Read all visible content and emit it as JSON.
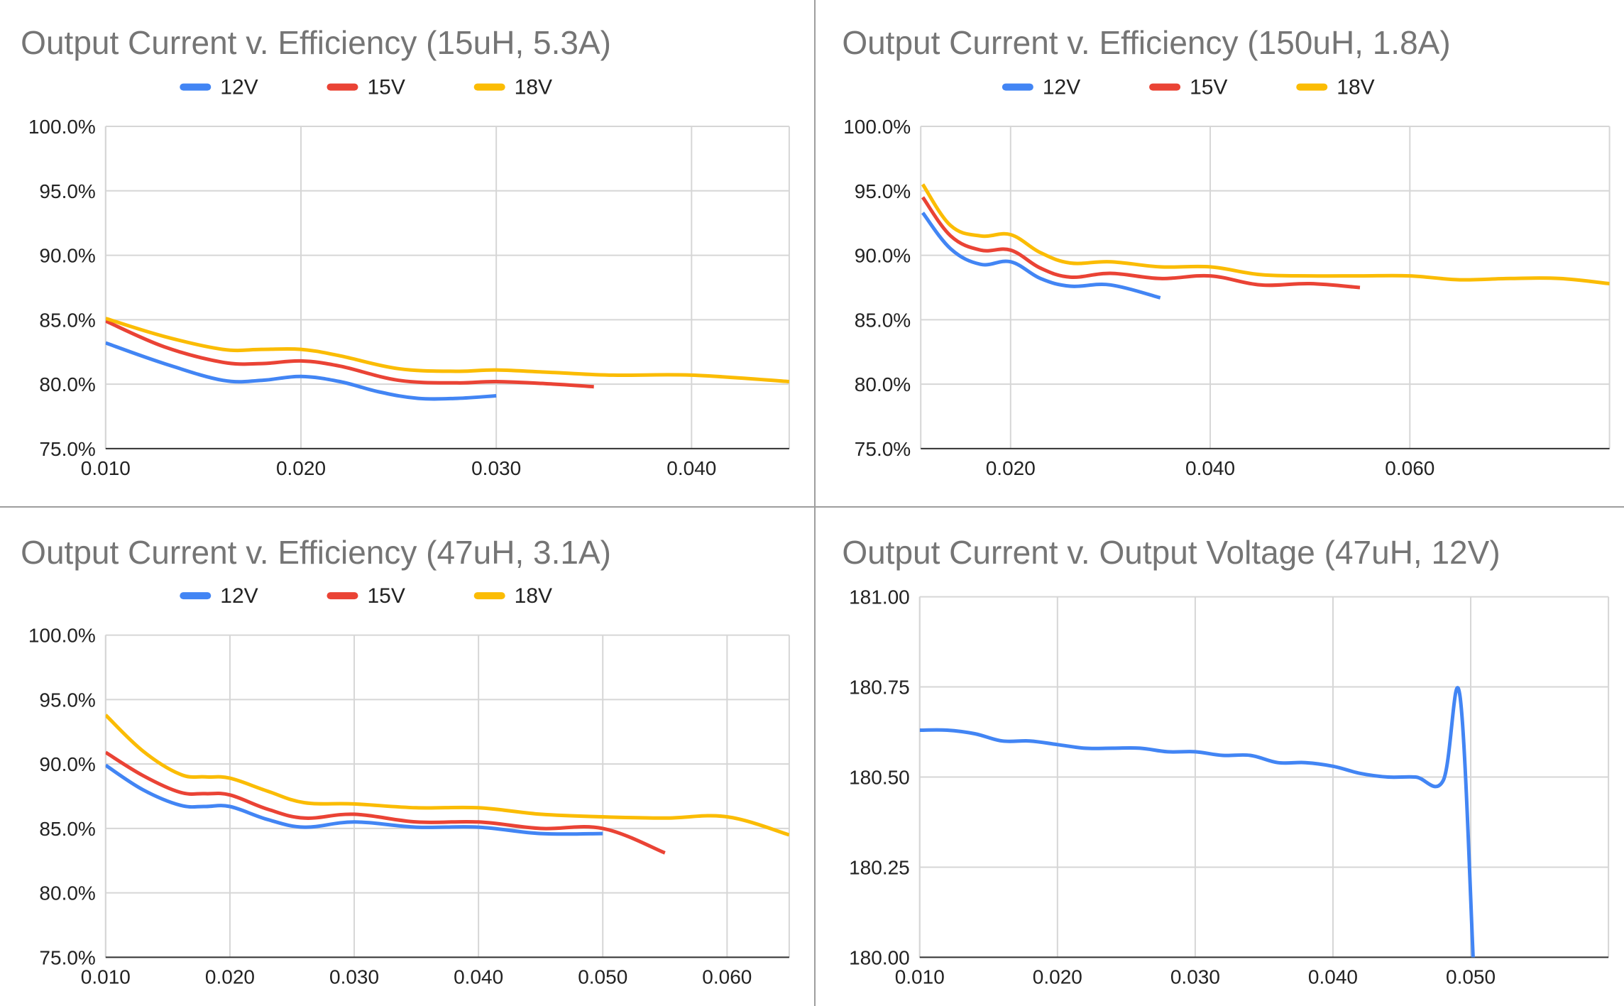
{
  "chart_data": [
    {
      "type": "line",
      "title": "Output Current v. Efficiency (15uH, 5.3A)",
      "xlabel": "",
      "ylabel": "",
      "xlim": [
        0.01,
        0.045
      ],
      "ylim": [
        0.75,
        1.0
      ],
      "xticks": [
        0.01,
        0.02,
        0.03,
        0.04
      ],
      "xtick_labels": [
        "0.010",
        "0.020",
        "0.030",
        "0.040"
      ],
      "yticks": [
        0.75,
        0.8,
        0.85,
        0.9,
        0.95,
        1.0
      ],
      "ytick_labels": [
        "75.0%",
        "80.0%",
        "85.0%",
        "90.0%",
        "95.0%",
        "100.0%"
      ],
      "grid": true,
      "legend_position": "top",
      "series": [
        {
          "name": "12V",
          "color": "#4285F4",
          "x": [
            0.01,
            0.013,
            0.016,
            0.018,
            0.02,
            0.022,
            0.024,
            0.026,
            0.028,
            0.03
          ],
          "y": [
            0.832,
            0.816,
            0.803,
            0.803,
            0.806,
            0.802,
            0.794,
            0.789,
            0.789,
            0.791
          ]
        },
        {
          "name": "15V",
          "color": "#EA4335",
          "x": [
            0.01,
            0.013,
            0.016,
            0.018,
            0.02,
            0.022,
            0.025,
            0.028,
            0.03,
            0.033,
            0.035
          ],
          "y": [
            0.849,
            0.829,
            0.817,
            0.816,
            0.818,
            0.814,
            0.803,
            0.801,
            0.802,
            0.8,
            0.798
          ]
        },
        {
          "name": "18V",
          "color": "#FBBC04",
          "x": [
            0.01,
            0.013,
            0.016,
            0.018,
            0.02,
            0.022,
            0.025,
            0.028,
            0.03,
            0.033,
            0.036,
            0.04,
            0.045
          ],
          "y": [
            0.851,
            0.837,
            0.827,
            0.827,
            0.827,
            0.822,
            0.812,
            0.81,
            0.811,
            0.809,
            0.807,
            0.807,
            0.802
          ]
        }
      ]
    },
    {
      "type": "line",
      "title": "Output Current v. Efficiency (150uH, 1.8A)",
      "xlabel": "",
      "ylabel": "",
      "xlim": [
        0.011,
        0.08
      ],
      "ylim": [
        0.75,
        1.0
      ],
      "xticks": [
        0.02,
        0.04,
        0.06
      ],
      "xtick_labels": [
        "0.020",
        "0.040",
        "0.060"
      ],
      "yticks": [
        0.75,
        0.8,
        0.85,
        0.9,
        0.95,
        1.0
      ],
      "ytick_labels": [
        "75.0%",
        "80.0%",
        "85.0%",
        "90.0%",
        "95.0%",
        "100.0%"
      ],
      "grid": true,
      "legend_position": "top",
      "series": [
        {
          "name": "12V",
          "color": "#4285F4",
          "x": [
            0.0112,
            0.014,
            0.017,
            0.02,
            0.023,
            0.026,
            0.03,
            0.035
          ],
          "y": [
            0.933,
            0.905,
            0.893,
            0.895,
            0.882,
            0.876,
            0.877,
            0.867
          ]
        },
        {
          "name": "15V",
          "color": "#EA4335",
          "x": [
            0.0112,
            0.014,
            0.017,
            0.02,
            0.023,
            0.026,
            0.03,
            0.035,
            0.04,
            0.045,
            0.05,
            0.055
          ],
          "y": [
            0.945,
            0.915,
            0.904,
            0.904,
            0.89,
            0.883,
            0.886,
            0.882,
            0.884,
            0.877,
            0.878,
            0.875
          ]
        },
        {
          "name": "18V",
          "color": "#FBBC04",
          "x": [
            0.0112,
            0.014,
            0.017,
            0.02,
            0.023,
            0.026,
            0.03,
            0.035,
            0.04,
            0.045,
            0.05,
            0.055,
            0.06,
            0.065,
            0.07,
            0.075,
            0.08
          ],
          "y": [
            0.955,
            0.923,
            0.915,
            0.916,
            0.902,
            0.894,
            0.895,
            0.891,
            0.891,
            0.885,
            0.884,
            0.884,
            0.884,
            0.881,
            0.882,
            0.882,
            0.878
          ]
        }
      ]
    },
    {
      "type": "line",
      "title": "Output Current v. Efficiency (47uH, 3.1A)",
      "xlabel": "",
      "ylabel": "",
      "xlim": [
        0.01,
        0.065
      ],
      "ylim": [
        0.75,
        1.0
      ],
      "xticks": [
        0.01,
        0.02,
        0.03,
        0.04,
        0.05,
        0.06
      ],
      "xtick_labels": [
        "0.010",
        "0.020",
        "0.030",
        "0.040",
        "0.050",
        "0.060"
      ],
      "yticks": [
        0.75,
        0.8,
        0.85,
        0.9,
        0.95,
        1.0
      ],
      "ytick_labels": [
        "75.0%",
        "80.0%",
        "85.0%",
        "90.0%",
        "95.0%",
        "100.0%"
      ],
      "grid": true,
      "legend_position": "top",
      "series": [
        {
          "name": "12V",
          "color": "#4285F4",
          "x": [
            0.01,
            0.013,
            0.016,
            0.018,
            0.02,
            0.023,
            0.026,
            0.03,
            0.035,
            0.04,
            0.045,
            0.05
          ],
          "y": [
            0.899,
            0.88,
            0.868,
            0.867,
            0.867,
            0.857,
            0.851,
            0.855,
            0.851,
            0.851,
            0.846,
            0.846
          ]
        },
        {
          "name": "15V",
          "color": "#EA4335",
          "x": [
            0.01,
            0.013,
            0.016,
            0.018,
            0.02,
            0.023,
            0.026,
            0.03,
            0.035,
            0.04,
            0.045,
            0.05,
            0.055
          ],
          "y": [
            0.909,
            0.891,
            0.878,
            0.877,
            0.876,
            0.865,
            0.858,
            0.861,
            0.855,
            0.855,
            0.85,
            0.85,
            0.831
          ]
        },
        {
          "name": "18V",
          "color": "#FBBC04",
          "x": [
            0.01,
            0.013,
            0.016,
            0.018,
            0.02,
            0.023,
            0.026,
            0.03,
            0.035,
            0.04,
            0.045,
            0.05,
            0.055,
            0.06,
            0.065
          ],
          "y": [
            0.938,
            0.91,
            0.892,
            0.89,
            0.889,
            0.879,
            0.87,
            0.869,
            0.866,
            0.866,
            0.861,
            0.859,
            0.858,
            0.859,
            0.845
          ]
        }
      ]
    },
    {
      "type": "line",
      "title": "Output Current v. Output Voltage (47uH, 12V)",
      "xlabel": "",
      "ylabel": "",
      "xlim": [
        0.01,
        0.06
      ],
      "ylim": [
        180.0,
        181.0
      ],
      "xticks": [
        0.01,
        0.02,
        0.03,
        0.04,
        0.05
      ],
      "xtick_labels": [
        "0.010",
        "0.020",
        "0.030",
        "0.040",
        "0.050"
      ],
      "yticks": [
        180.0,
        180.25,
        180.5,
        180.75,
        181.0
      ],
      "ytick_labels": [
        "180.00",
        "180.25",
        "180.50",
        "180.75",
        "181.00"
      ],
      "grid": true,
      "legend_position": "none",
      "series": [
        {
          "color": "#4285F4",
          "x": [
            0.01,
            0.012,
            0.014,
            0.016,
            0.018,
            0.02,
            0.022,
            0.024,
            0.026,
            0.028,
            0.03,
            0.032,
            0.034,
            0.036,
            0.038,
            0.04,
            0.042,
            0.044,
            0.046,
            0.048,
            0.0492,
            0.0502
          ],
          "y": [
            180.63,
            180.63,
            180.62,
            180.6,
            180.6,
            180.59,
            180.58,
            180.58,
            180.58,
            180.57,
            180.57,
            180.56,
            180.56,
            180.54,
            180.54,
            180.53,
            180.51,
            180.5,
            180.5,
            180.49,
            180.73,
            179.98
          ]
        }
      ]
    }
  ]
}
